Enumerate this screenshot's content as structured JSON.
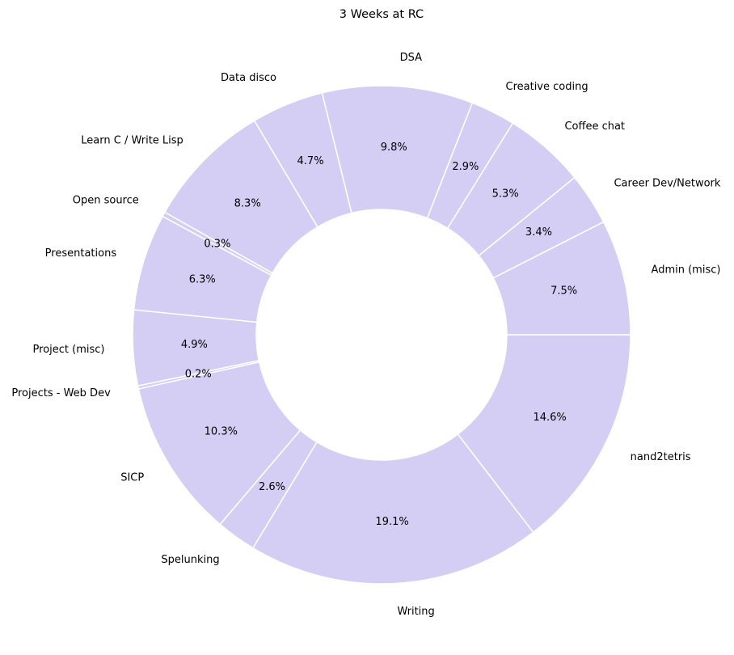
{
  "chart_data": {
    "type": "pie",
    "variant": "donut",
    "title": "3 Weeks at RC",
    "slice_color": "#d4cef4",
    "edge_color": "#ffffff",
    "start_angle_deg": 0,
    "direction": "counterclockwise",
    "slices": [
      {
        "label": "Admin (misc)",
        "value": 7.5,
        "pct_label": "7.5%"
      },
      {
        "label": "Career Dev/Network",
        "value": 3.4,
        "pct_label": "3.4%"
      },
      {
        "label": "Coffee chat",
        "value": 5.3,
        "pct_label": "5.3%"
      },
      {
        "label": "Creative coding",
        "value": 2.9,
        "pct_label": "2.9%"
      },
      {
        "label": "DSA",
        "value": 9.8,
        "pct_label": "9.8%"
      },
      {
        "label": "Data disco",
        "value": 4.7,
        "pct_label": "4.7%"
      },
      {
        "label": "Learn C / Write Lisp",
        "value": 8.3,
        "pct_label": "8.3%"
      },
      {
        "label": "Open source",
        "value": 0.3,
        "pct_label": "0.3%"
      },
      {
        "label": "Presentations",
        "value": 6.3,
        "pct_label": "6.3%"
      },
      {
        "label": "Project (misc)",
        "value": 4.9,
        "pct_label": "4.9%"
      },
      {
        "label": "Projects - Web Dev",
        "value": 0.2,
        "pct_label": "0.2%"
      },
      {
        "label": "SICP",
        "value": 10.3,
        "pct_label": "10.3%"
      },
      {
        "label": "Spelunking",
        "value": 2.6,
        "pct_label": "2.6%"
      },
      {
        "label": "Writing",
        "value": 19.1,
        "pct_label": "19.1%"
      },
      {
        "label": "nand2tetris",
        "value": 14.6,
        "pct_label": "14.6%"
      }
    ]
  }
}
